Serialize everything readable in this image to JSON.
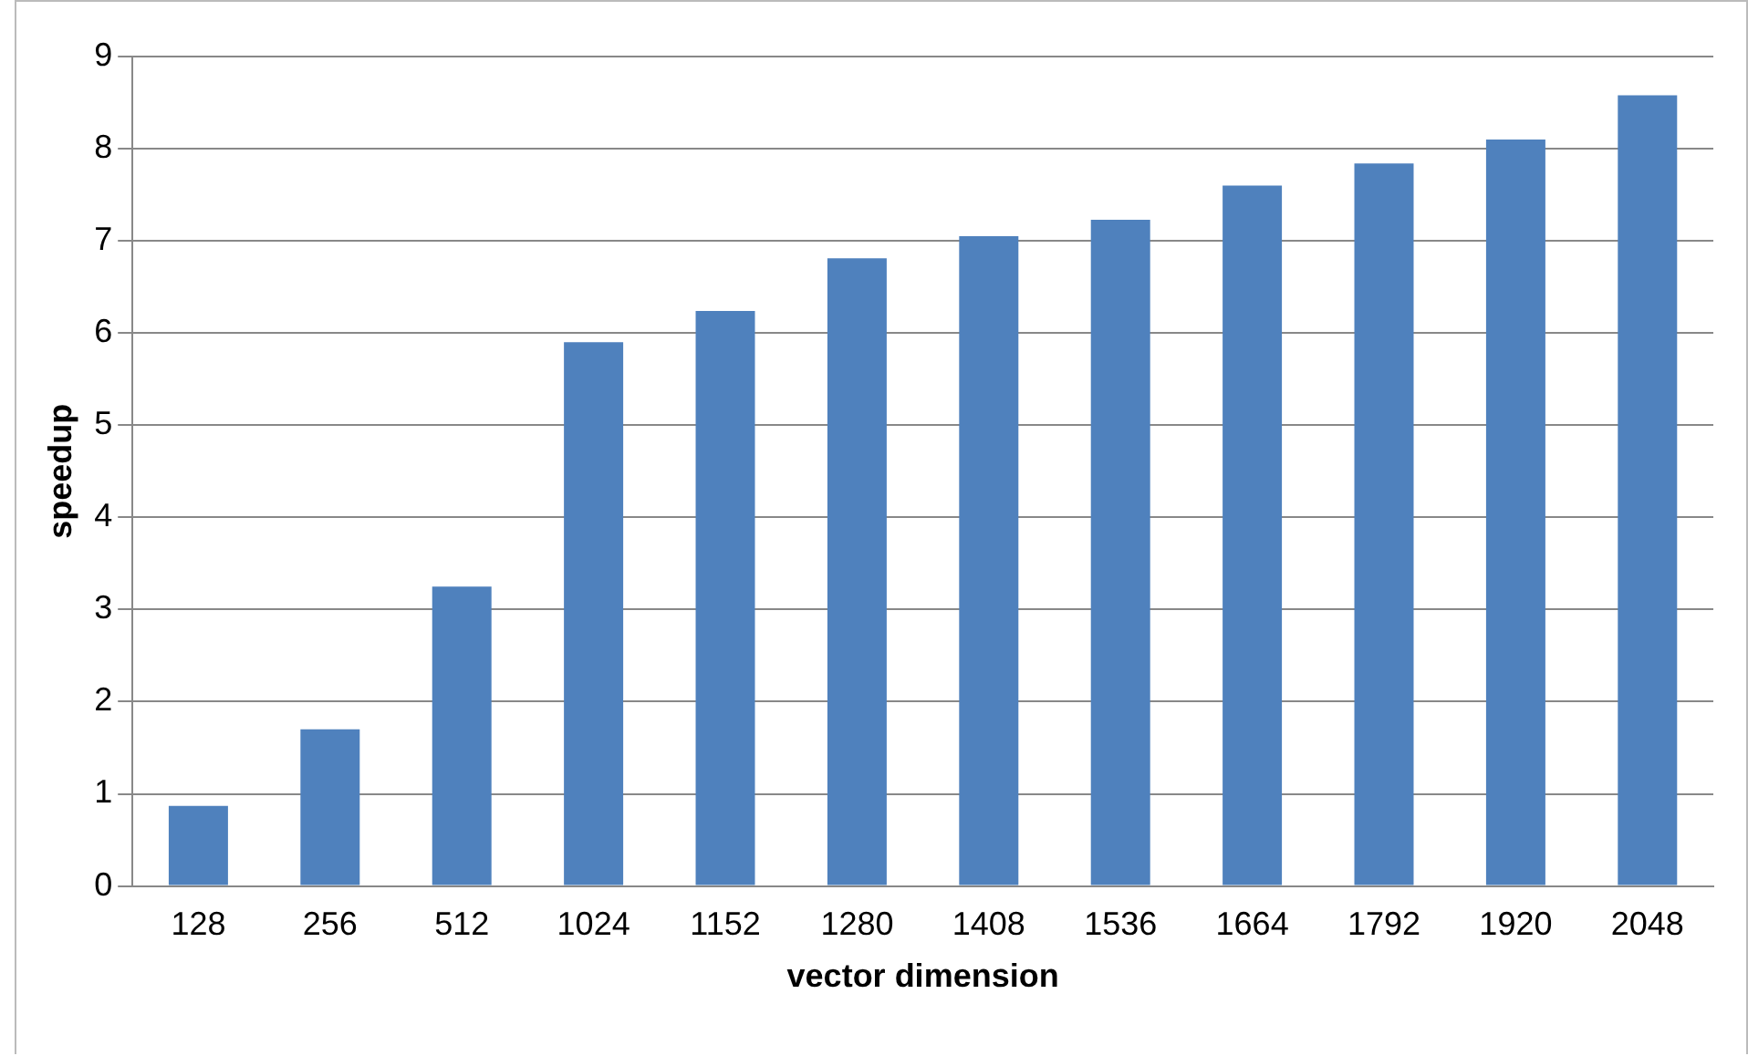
{
  "chart_data": {
    "type": "bar",
    "xlabel": "vector dimension",
    "ylabel": "speedup",
    "categories": [
      "128",
      "256",
      "512",
      "1024",
      "1152",
      "1280",
      "1408",
      "1536",
      "1664",
      "1792",
      "1920",
      "2048"
    ],
    "values": [
      0.87,
      1.7,
      3.25,
      5.9,
      6.24,
      6.81,
      7.05,
      7.23,
      7.6,
      7.84,
      8.1,
      8.58
    ],
    "color": "#4f81bd",
    "ylim": [
      0,
      9
    ],
    "yticks": [
      0,
      1,
      2,
      3,
      4,
      5,
      6,
      7,
      8,
      9
    ],
    "grid": "y",
    "legend": false
  }
}
